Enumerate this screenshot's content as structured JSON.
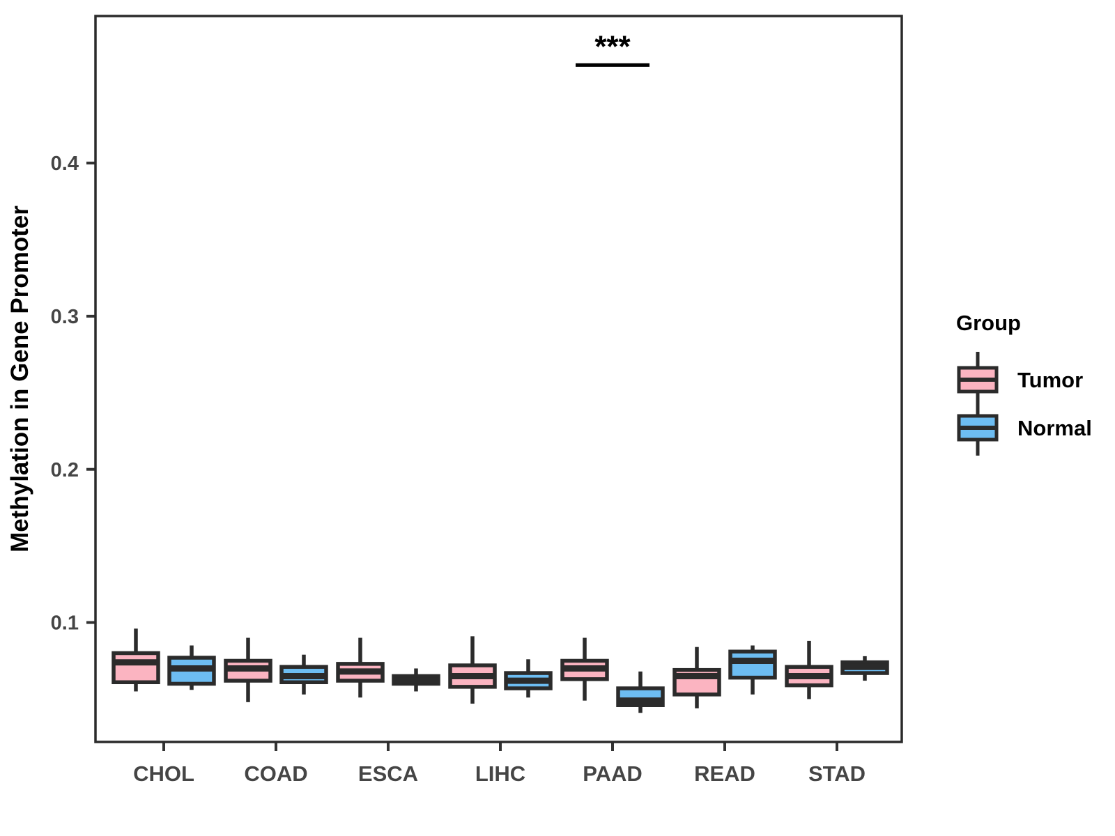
{
  "figure": {
    "background": "#ffffff",
    "y_axis_title": "Methylation in Gene Promoter",
    "legend": {
      "title": "Group",
      "entries": [
        {
          "label": "Tumor",
          "color": "#FBB4C1"
        },
        {
          "label": "Normal",
          "color": "#6DBDF2"
        }
      ]
    }
  },
  "colors": {
    "box_stroke": "#2B2B2B",
    "panel_border": "#2B2B2B",
    "tick_mark": "#333333",
    "tick_label": "#454545",
    "title_text": "#000000",
    "tumor_fill": "#FBB4C1",
    "normal_fill": "#6DBDF2"
  },
  "chart_data": {
    "type": "boxplot",
    "title": "",
    "xlabel": "",
    "ylabel": "Methylation in Gene Promoter",
    "categories": [
      "CHOL",
      "COAD",
      "ESCA",
      "LIHC",
      "PAAD",
      "READ",
      "STAD"
    ],
    "ylim": [
      0.022,
      0.496
    ],
    "yticks": [
      0.1,
      0.2,
      0.3,
      0.4
    ],
    "ytick_labels": [
      "0.1",
      "0.2",
      "0.3",
      "0.4"
    ],
    "grid": false,
    "legend_position": "right",
    "series": [
      {
        "name": "Tumor",
        "color": "#FBB4C1",
        "boxes": [
          {
            "category": "CHOL",
            "whisker_low": 0.055,
            "q1": 0.061,
            "median": 0.074,
            "q3": 0.08,
            "whisker_high": 0.096
          },
          {
            "category": "COAD",
            "whisker_low": 0.048,
            "q1": 0.062,
            "median": 0.07,
            "q3": 0.075,
            "whisker_high": 0.09
          },
          {
            "category": "ESCA",
            "whisker_low": 0.051,
            "q1": 0.062,
            "median": 0.068,
            "q3": 0.073,
            "whisker_high": 0.09
          },
          {
            "category": "LIHC",
            "whisker_low": 0.047,
            "q1": 0.058,
            "median": 0.065,
            "q3": 0.072,
            "whisker_high": 0.091
          },
          {
            "category": "PAAD",
            "whisker_low": 0.049,
            "q1": 0.063,
            "median": 0.07,
            "q3": 0.075,
            "whisker_high": 0.09
          },
          {
            "category": "READ",
            "whisker_low": 0.044,
            "q1": 0.053,
            "median": 0.065,
            "q3": 0.069,
            "whisker_high": 0.084
          },
          {
            "category": "STAD",
            "whisker_low": 0.05,
            "q1": 0.059,
            "median": 0.065,
            "q3": 0.071,
            "whisker_high": 0.088
          }
        ]
      },
      {
        "name": "Normal",
        "color": "#6DBDF2",
        "boxes": [
          {
            "category": "CHOL",
            "whisker_low": 0.056,
            "q1": 0.06,
            "median": 0.07,
            "q3": 0.077,
            "whisker_high": 0.085
          },
          {
            "category": "COAD",
            "whisker_low": 0.053,
            "q1": 0.061,
            "median": 0.065,
            "q3": 0.071,
            "whisker_high": 0.079
          },
          {
            "category": "ESCA",
            "whisker_low": 0.055,
            "q1": 0.06,
            "median": 0.062,
            "q3": 0.065,
            "whisker_high": 0.07
          },
          {
            "category": "LIHC",
            "whisker_low": 0.051,
            "q1": 0.057,
            "median": 0.062,
            "q3": 0.067,
            "whisker_high": 0.076
          },
          {
            "category": "PAAD",
            "whisker_low": 0.041,
            "q1": 0.046,
            "median": 0.049,
            "q3": 0.057,
            "whisker_high": 0.068
          },
          {
            "category": "READ",
            "whisker_low": 0.053,
            "q1": 0.064,
            "median": 0.075,
            "q3": 0.081,
            "whisker_high": 0.085
          },
          {
            "category": "STAD",
            "whisker_low": 0.062,
            "q1": 0.067,
            "median": 0.071,
            "q3": 0.074,
            "whisker_high": 0.078
          }
        ]
      }
    ],
    "annotations": [
      {
        "type": "significance-bracket",
        "category": "PAAD",
        "label": "***",
        "y": 0.464
      }
    ]
  }
}
